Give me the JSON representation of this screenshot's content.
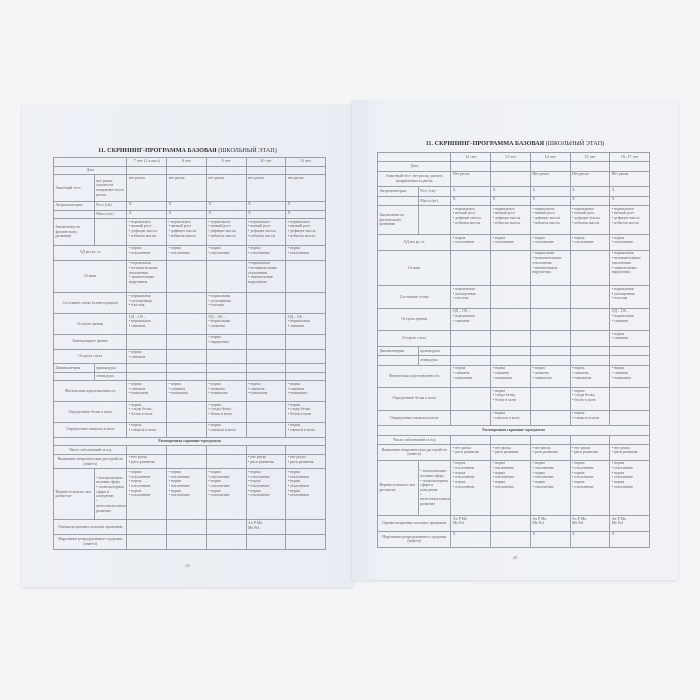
{
  "pages": [
    {
      "title_bold": "11. СКРИНИНГ-ПРОГРАММА БАЗОВАЯ",
      "title_rest": " (ШКОЛЬНЫЙ ЭТАП)",
      "columns": [
        "7 лет (1 класс)",
        "8 лет",
        "9 лет",
        "10 лет",
        "11 лет"
      ],
      "page_number": "28",
      "rows": [
        {
          "label": "Дата",
          "cells": [
            "",
            "",
            "",
            "",
            ""
          ]
        },
        {
          "label": "Анкетный тест:",
          "sub": "нет риска, указать на направлен-ность риска",
          "cells": [
            "нет риска",
            "нет риска",
            "нет риска",
            "нет риска",
            "нет риска"
          ]
        },
        {
          "label": "Антропометрия:",
          "sub": "Рост (см)",
          "cells": [
            "X",
            "X",
            "X",
            "X",
            "X"
          ]
        },
        {
          "label": "",
          "sub": "Масса (кг)",
          "cells": [
            "X",
            "X",
            "X",
            "X",
            "X"
          ]
        },
        {
          "label": "Заключение по физическому развитию",
          "sub": "",
          "cells": [
            "• нормальное\n• низкий рост\n• дефицит массы\n• избыток массы",
            "• нормальное\n• низкий рост\n• дефицит массы\n• избыток массы",
            "• нормальное\n• низкий рост\n• дефицит массы\n• избыток массы",
            "• нормальное\n• низкий рост\n• дефицит массы\n• избыток массы",
            "• нормальное\n• низкий рост\n• дефицит массы\n• избыток массы"
          ]
        },
        {
          "label": "АД мм рт. ст.",
          "cells": [
            "• норма\n• отклонение",
            "• норма\n• отклонение",
            "• норма\n• отклонение",
            "• норма\n• отклонение",
            "• норма\n• отклонение"
          ]
        },
        {
          "label": "Осанка",
          "cells": [
            "• нормальная\n• незначительные отклонения\n• значительные нарушения",
            "",
            "",
            "• нормальная\n• незначительные отклонения\n• значительные нарушения",
            ""
          ]
        },
        {
          "label": "Состояние стопы (плантограмма)",
          "cells": [
            "• нормальная\n• уплощенная\n• плоская",
            "",
            "• нормальная\n• уплощенная\n• плоская",
            "",
            ""
          ]
        },
        {
          "label": "Острота зрения",
          "cells": [
            "ОД – OS –\n• нормальная\n• снижена",
            "",
            "ОД – OS –\n• нормальная\n• снижена",
            "",
            "ОД – OS –\n• нормальная\n• снижена"
          ]
        },
        {
          "label": "Бинокулярное зрение",
          "cells": [
            "",
            "",
            "• норма\n• нарушение",
            "",
            ""
          ]
        },
        {
          "label": "Острота слуха",
          "cells": [
            "• норма\n• снижена",
            "",
            "",
            "",
            ""
          ]
        },
        {
          "label": "Динамометрия",
          "sub": "правая рука",
          "cells": [
            "",
            "",
            "",
            "",
            ""
          ]
        },
        {
          "label": "",
          "sub": "левая рука",
          "cells": [
            "",
            "",
            "",
            "",
            ""
          ]
        },
        {
          "label": "Физическая подготовленность",
          "cells": [
            "• норма\n• снижена\n• повышена",
            "• норма\n• снижена\n• повышена",
            "• норма\n• снижена\n• повышена",
            "• норма\n• снижена\n• повышена",
            "• норма\n• снижена\n• повышена"
          ]
        },
        {
          "label": "Определение белка в моче",
          "cells": [
            "• норма\n• следы белка\n• белок в моче",
            "",
            "• норма\n• следы белка\n• белок в моче",
            "",
            "• норма\n• следы белка\n• белок в моче"
          ]
        },
        {
          "label": "Определение глюкозы в моче",
          "cells": [
            "• норма\n• глюкоза в моче",
            "",
            "• норма\n• глюкоза в моче",
            "",
            "• норма\n• глюкоза в моче"
          ]
        },
        {
          "section": "Расширенная скрининг-программа"
        },
        {
          "label": "Число заболеваний за год",
          "cells": [
            "",
            "",
            "",
            "",
            ""
          ]
        },
        {
          "label": "Выявление невротических расстройств (анкета)",
          "cells": [
            "• нет риска\n• риск развития",
            "",
            "",
            "• нет риска\n• риск развития",
            "• нет риска\n• риск развития"
          ]
        },
        {
          "label": "Нервно-психичес-кое разви-тие",
          "sub": "• эмоционально-волевая сфера\n• психомоторная сфера и поведение\n• интеллектуальное развитие",
          "cells": [
            "• норма\n• отклонение\n• норма\n• отклонение\n• норма\n• отклонение",
            "• норма\n• отклонение\n• норма\n• отклонение\n• норма\n• отклонение",
            "• норма\n• отклонение\n• норма\n• отклонение\n• норма\n• отклонение",
            "• норма\n• отклонение\n• норма\n• отклонение\n• норма\n• отклонение",
            "• норма\n• отклонение\n• норма\n• отклонение\n• норма\n• отклонение"
          ]
        },
        {
          "label": "Оценка вторичных половых признаков",
          "cells": [
            "",
            "",
            "",
            "Ax   P   Ma\nMe   Pol",
            ""
          ]
        },
        {
          "label": "Нарушение репродуктивного здоровья (анкета)",
          "cells": [
            "",
            "",
            "",
            "",
            ""
          ]
        }
      ]
    },
    {
      "title_bold": "11. СКРИНИНГ-ПРОГРАММА БАЗОВАЯ",
      "title_rest": " (ШКОЛЬНЫЙ ЭТАП)",
      "columns": [
        "12 лет",
        "13 лет",
        "14 лет",
        "15 лет",
        "16–17 лет"
      ],
      "page_number": "29",
      "rows": [
        {
          "label": "Дата",
          "cells": [
            "",
            "",
            "",
            "",
            ""
          ]
        },
        {
          "label": "Анкетный тест: нет риска, указать направленность риска",
          "cells": [
            "Нет риска",
            "",
            "Нет риска",
            "Нет риска",
            "Нет риска"
          ]
        },
        {
          "label": "Антропометрия:",
          "sub": "Рост (см)",
          "cells": [
            "X",
            "X",
            "X",
            "X",
            "X"
          ]
        },
        {
          "label": "",
          "sub": "Масса (кг)",
          "cells": [
            "X",
            "X",
            "X",
            "X",
            "X"
          ]
        },
        {
          "label": "Заключение по физическому развитию",
          "sub": "",
          "cells": [
            "• нормальное\n• низкий рост\n• дефицит массы\n• избыток массы",
            "• нормальное\n• низкий рост\n• дефицит массы\n• избыток массы",
            "• нормальное\n• низкий рост\n• дефицит массы\n• избыток массы",
            "• нормальное\n• низкий рост\n• дефицит массы\n• избыток массы",
            "• нормальное\n• низкий рост\n• дефицит массы\n• избыток массы"
          ]
        },
        {
          "label": "АД мм рт. ст.",
          "cells": [
            "• норма\n• отклонение",
            "• норма\n• отклонение",
            "• норма\n• отклонение",
            "• норма\n• отклонение",
            "• норма\n• отклонение"
          ]
        },
        {
          "label": "Осанка",
          "cells": [
            "",
            "",
            "• нормальная\n• незначительные отклонения\n• значительные нарушения",
            "",
            "• нормальная\n• незначительные отклонения\n• значительные нарушения"
          ]
        },
        {
          "label": "Состояние стопы",
          "cells": [
            "• нормальная\n• уплощенная\n• плоская",
            "",
            "",
            "",
            "• нормальная\n• уплощенная\n• плоская"
          ]
        },
        {
          "label": "Острота зрения",
          "cells": [
            "ОД – OS –\n• нормальная\n• снижена",
            "",
            "",
            "",
            "ОД – OS –\n• нормальная\n• снижена"
          ]
        },
        {
          "label": "Острота слуха",
          "cells": [
            "",
            "",
            "",
            "",
            "• норма\n• снижена"
          ]
        },
        {
          "label": "Динамометрия",
          "sub": "правая рука",
          "cells": [
            "",
            "",
            "",
            "",
            ""
          ]
        },
        {
          "label": "",
          "sub": "левая рука",
          "cells": [
            "",
            "",
            "",
            "",
            ""
          ]
        },
        {
          "label": "Физическая подготовленность",
          "cells": [
            "• норма\n• снижена\n• повышена",
            "• норма\n• снижена\n• повышена",
            "• норма\n• снижена\n• повышена",
            "• норма\n• снижена\n• повышена",
            "• норма\n• снижена\n• повышена"
          ]
        },
        {
          "label": "Определение белка в моче",
          "cells": [
            "",
            "• норма\n• следы белка\n• белок в моче",
            "",
            "• норма\n• следы белка\n• белок в моче",
            ""
          ]
        },
        {
          "label": "Определение глюкозы в моче",
          "cells": [
            "",
            "• норма\n• глюкоза в моче",
            "",
            "• норма\n• глюкоза в моче",
            ""
          ]
        },
        {
          "section": "Расширенная скрининг-программа"
        },
        {
          "label": "Число заболеваний за год",
          "cells": [
            "",
            "",
            "",
            "",
            ""
          ]
        },
        {
          "label": "Выявление невротических расстройств (анкета)",
          "cells": [
            "• нет риска\n• риск развития",
            "• нет риска\n• риск развития",
            "• нет риска\n• риск развития",
            "• нет риска\n• риск развития",
            "• нет риска\n• риск развития"
          ]
        },
        {
          "label": "Нервно-психичес-кое раз-витие",
          "sub": "• эмоционально-волевая сфера\n• психомоторная сфера и поведение\n• интеллектуальное развитие",
          "cells": [
            "• норма\n• отклонение\n• норма\n• отклонение\n• норма\n• отклонение",
            "• норма\n• отклонение\n• норма\n• отклонение\n• норма\n• отклонение",
            "• норма\n• отклонение\n• норма\n• отклонение\n• норма\n• отклонение",
            "• норма\n• отклонение\n• норма\n• отклонение\n• норма\n• отклонение",
            "• норма\n• отклонение\n• норма\n• отклонение\n• норма\n• отклонение"
          ]
        },
        {
          "label": "Оценка вторичных половых признаков",
          "cells": [
            "Ax   P   Ma\nMe   Pol",
            "",
            "Ax   P   Ma\nMe   Pol",
            "Ax   P   Ma\nMe   Pol",
            "Ax   P   Ma\nMe   Pol"
          ]
        },
        {
          "label": "Нарушение репродуктивного здоровья (анкета)",
          "cells": [
            "X",
            "",
            "X",
            "X",
            "X"
          ]
        }
      ]
    }
  ]
}
